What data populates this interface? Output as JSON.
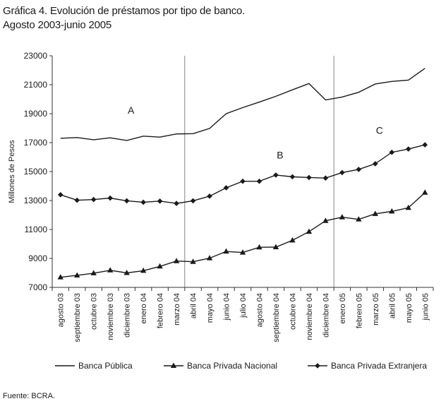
{
  "title_line1": "Gráfica 4. Evolución de préstamos por tipo de banco.",
  "title_line2": "Agosto 2003-junio 2005",
  "source": "Fuente: BCRA.",
  "chart_data": {
    "type": "line",
    "ylabel": "Millones de Pesos",
    "ylim": [
      7000,
      23000
    ],
    "yticks": [
      7000,
      9000,
      11000,
      13000,
      15000,
      17000,
      19000,
      21000,
      23000
    ],
    "ytick_labels": [
      "7000",
      "9000",
      "11000",
      "13000",
      "15000",
      "17000",
      "19000",
      "21000",
      "23000"
    ],
    "grid": false,
    "legend_position": "bottom",
    "categories": [
      "agosto 03",
      "septiembre 03",
      "octubre 03",
      "noviembre 03",
      "diciembre 03",
      "enero 04",
      "febrero 04",
      "marzo 04",
      "abril 04",
      "mayo 04",
      "junio 04",
      "julio 04",
      "agosto 04",
      "septiembre 04",
      "octubre 04",
      "noviembre 04",
      "diciembre 04",
      "enero 05",
      "febrero 05",
      "marzo 05",
      "abril 05",
      "mayo 05",
      "junio 05"
    ],
    "series": [
      {
        "name": "Banca Pública",
        "marker": "none",
        "values": [
          17300,
          17350,
          17200,
          17330,
          17150,
          17450,
          17380,
          17600,
          17620,
          17980,
          19000,
          19420,
          19800,
          20200,
          20650,
          21080,
          19950,
          20150,
          20480,
          21050,
          21230,
          21320,
          22130
        ]
      },
      {
        "name": "Banca Privada Nacional",
        "marker": "triangle",
        "values": [
          7700,
          7830,
          7980,
          8180,
          8000,
          8150,
          8450,
          8820,
          8770,
          9020,
          9480,
          9410,
          9770,
          9780,
          10250,
          10850,
          11600,
          11850,
          11700,
          12080,
          12250,
          12500,
          13550
        ]
      },
      {
        "name": "Banca Privada Extranjera",
        "marker": "diamond",
        "values": [
          13400,
          13020,
          13070,
          13170,
          12980,
          12880,
          12960,
          12800,
          12980,
          13300,
          13880,
          14330,
          14330,
          14760,
          14640,
          14590,
          14550,
          14930,
          15150,
          15540,
          16330,
          16560,
          16850
        ]
      }
    ],
    "vertical_lines_after": [
      "marzo 04",
      "diciembre 04"
    ],
    "annotations": [
      {
        "text": "A",
        "x": "diciembre 03",
        "y": 19000
      },
      {
        "text": "B",
        "x": "septiembre 04",
        "y": 15900
      },
      {
        "text": "C",
        "x": "marzo 05",
        "y": 17600
      }
    ]
  }
}
